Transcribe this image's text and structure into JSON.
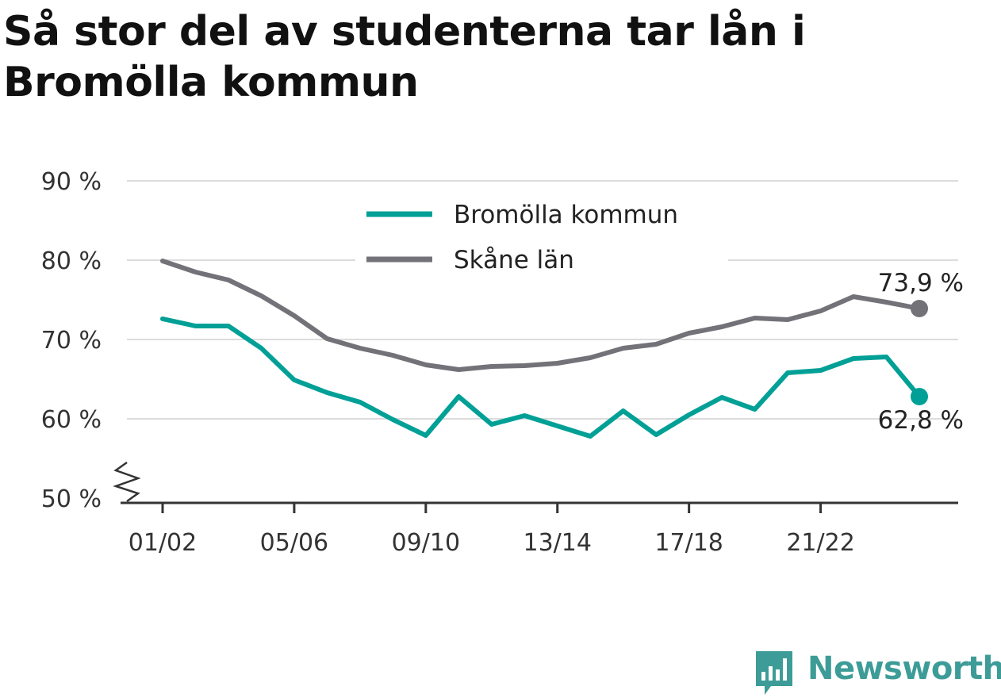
{
  "title": "Så stor del av studenterna tar lån i Bromölla kommun",
  "brand": {
    "name": "Newsworthy",
    "icon": "newsworthy-logo-icon",
    "color": "#3d9c97"
  },
  "chart_data": {
    "type": "line",
    "title": "Så stor del av studenterna tar lån i Bromölla kommun",
    "xlabel": "",
    "ylabel": "",
    "ylim": [
      50,
      90
    ],
    "y_ticks": [
      50,
      60,
      70,
      80,
      90
    ],
    "y_tick_labels": [
      "50 %",
      "60 %",
      "70 %",
      "80 %",
      "90 %"
    ],
    "y_axis_break": true,
    "grid": true,
    "legend_placement": "top-center",
    "categories": [
      "01/02",
      "02/03",
      "03/04",
      "04/05",
      "05/06",
      "06/07",
      "07/08",
      "08/09",
      "09/10",
      "10/11",
      "11/12",
      "12/13",
      "13/14",
      "14/15",
      "15/16",
      "16/17",
      "17/18",
      "18/19",
      "19/20",
      "20/21",
      "21/22",
      "22/23",
      "23/24",
      "24/25"
    ],
    "x_tick_labels": [
      "01/02",
      "05/06",
      "09/10",
      "13/14",
      "17/18",
      "21/22"
    ],
    "series": [
      {
        "name": "Bromölla kommun",
        "color": "#00a096",
        "values": [
          72.6,
          71.7,
          71.7,
          68.9,
          64.9,
          63.3,
          62.1,
          59.9,
          57.9,
          62.8,
          59.3,
          60.4,
          59.1,
          57.8,
          61.0,
          58.0,
          60.5,
          62.7,
          61.2,
          65.8,
          66.1,
          67.6,
          67.8,
          62.8
        ],
        "end_label": "62,8 %"
      },
      {
        "name": "Skåne län",
        "color": "#727278",
        "values": [
          79.9,
          78.5,
          77.5,
          75.5,
          73.0,
          70.1,
          68.9,
          68.0,
          66.8,
          66.2,
          66.6,
          66.7,
          67.0,
          67.7,
          68.9,
          69.4,
          70.8,
          71.6,
          72.7,
          72.5,
          73.6,
          75.4,
          74.7,
          73.9
        ],
        "end_label": "73,9 %"
      }
    ]
  }
}
